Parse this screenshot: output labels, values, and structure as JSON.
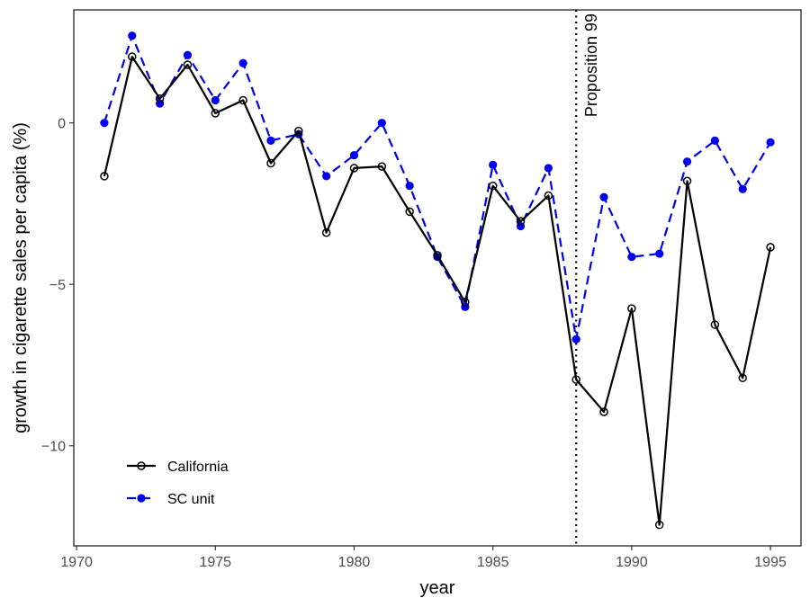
{
  "chart_data": {
    "type": "line",
    "xlabel": "year",
    "ylabel": "growth in cigarette sales per capita (%)",
    "xlim": [
      1969.9,
      1996.1
    ],
    "ylim": [
      -13.1,
      3.5
    ],
    "x_ticks": [
      1970,
      1975,
      1980,
      1985,
      1990,
      1995
    ],
    "y_ticks": [
      0,
      -5,
      -10
    ],
    "y_tick_labels": [
      "0",
      "−5",
      "−10"
    ],
    "grid": false,
    "legend_position": "bottom-left",
    "x": [
      1971,
      1972,
      1973,
      1974,
      1975,
      1976,
      1977,
      1978,
      1979,
      1980,
      1981,
      1982,
      1983,
      1984,
      1985,
      1986,
      1987,
      1988,
      1989,
      1990,
      1991,
      1992,
      1993,
      1994,
      1995
    ],
    "series": [
      {
        "name": "California",
        "color": "#000000",
        "line_style": "solid",
        "marker": "open-circle",
        "values": [
          -1.65,
          2.05,
          0.75,
          1.8,
          0.3,
          0.7,
          -1.25,
          -0.25,
          -3.4,
          -1.4,
          -1.35,
          -2.75,
          -4.1,
          -5.55,
          -1.95,
          -3.05,
          -2.25,
          -7.95,
          -8.95,
          -5.75,
          -12.45,
          -1.8,
          -6.25,
          -7.9,
          -3.85
        ]
      },
      {
        "name": "SC unit",
        "color": "#0000ee",
        "line_style": "dashed",
        "marker": "filled-circle",
        "values": [
          0.0,
          2.7,
          0.6,
          2.1,
          0.7,
          1.85,
          -0.55,
          -0.35,
          -1.65,
          -1.0,
          0.0,
          -1.95,
          -4.15,
          -5.7,
          -1.3,
          -3.2,
          -1.4,
          -6.7,
          -2.3,
          -4.15,
          -4.05,
          -1.2,
          -0.55,
          -2.05,
          -0.6
        ]
      }
    ],
    "annotations": [
      {
        "type": "vline",
        "x": 1988,
        "style": "dotted",
        "label": "Proposition 99"
      }
    ]
  }
}
